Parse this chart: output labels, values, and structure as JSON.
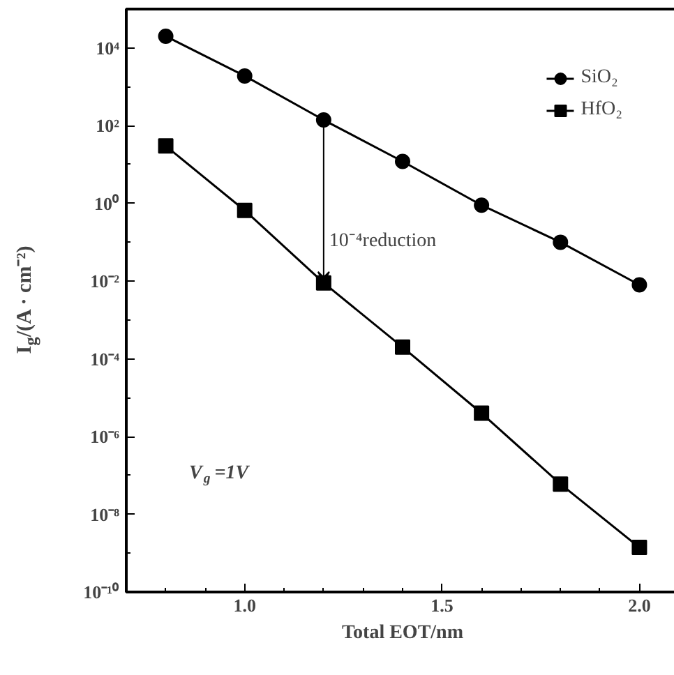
{
  "chart_data": {
    "type": "line",
    "xlabel": "Total EOT/nm",
    "ylabel": "I$_{g}$/(A · cm⁻²)",
    "log": "y",
    "grid": false,
    "legend": "top right",
    "line_style": "solid",
    "x": [
      0.8,
      1.0,
      1.2,
      1.4,
      1.6,
      1.8,
      2.0
    ],
    "xlim": [
      0.7,
      2.1
    ],
    "xticks": [
      {
        "value": 1.0,
        "label": "1.0"
      },
      {
        "value": 1.5,
        "label": "1.5"
      },
      {
        "value": 2.0,
        "label": "2.0"
      }
    ],
    "ylim": [
      1e-10,
      100000.0
    ],
    "yticks": [
      {
        "value": 10000.0,
        "label": "10⁴"
      },
      {
        "value": 100.0,
        "label": "10²"
      },
      {
        "value": 1,
        "label": "10⁰"
      },
      {
        "value": 0.01,
        "label": "10⁻²"
      },
      {
        "value": 0.0001,
        "label": "10⁻⁴"
      },
      {
        "value": 1e-06,
        "label": "10⁻⁶"
      },
      {
        "value": 1e-08,
        "label": "10⁻⁸"
      },
      {
        "value": 1e-10,
        "label": "10⁻¹⁰"
      }
    ],
    "series": [
      {
        "name": "SiO₂",
        "color": "#000000",
        "marker": "circle",
        "values": [
          20000.0,
          1900.0,
          140.0,
          12,
          0.9,
          0.1,
          0.008
        ]
      },
      {
        "name": "HfO₂",
        "color": "#000000",
        "marker": "square",
        "values": [
          30,
          0.66,
          0.009,
          0.0002,
          4e-06,
          6e-08,
          1.4e-09
        ]
      }
    ],
    "annotations": [
      {
        "text": "10⁻⁴reduction",
        "x": 1.2,
        "y": 0.009
      },
      "V$_{g}$=1V"
    ]
  }
}
